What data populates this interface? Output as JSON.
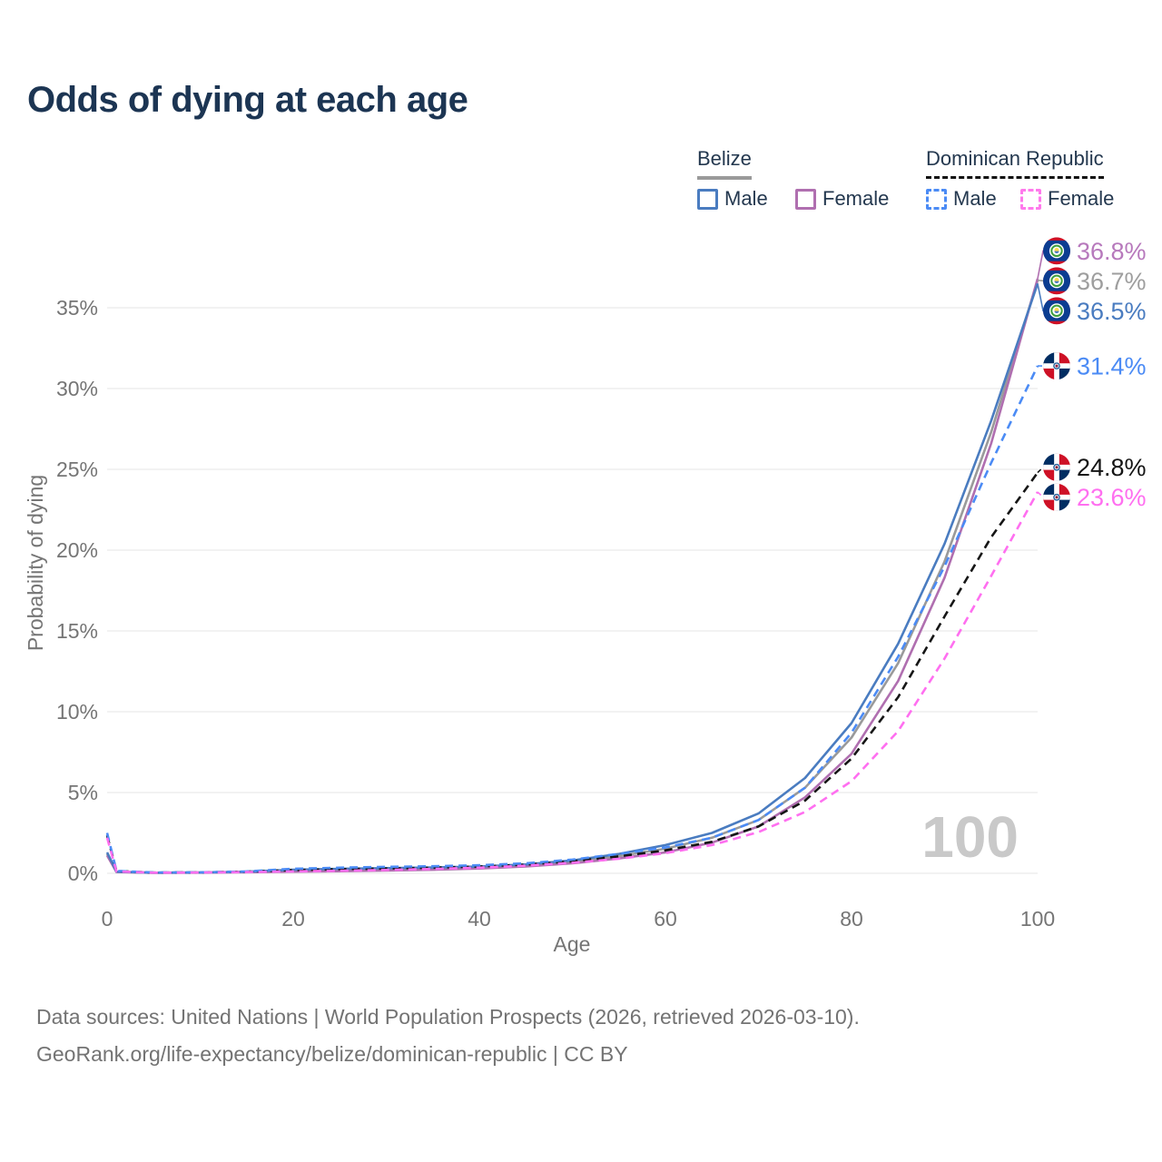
{
  "page": {
    "title": "Odds of dying at each age",
    "watermark_age": "100"
  },
  "legend": {
    "belize": {
      "label": "Belize",
      "male_label": "Male",
      "female_label": "Female",
      "male_color": "#4a7cc0",
      "female_color": "#b06fb0",
      "both_line_color": "#9a9a9a",
      "line_style": "solid"
    },
    "dominican_republic": {
      "label": "Dominican Republic",
      "male_label": "Male",
      "female_label": "Female",
      "male_color": "#4b8bf5",
      "female_color": "#ff79ec",
      "both_line_color": "#121212",
      "line_style": "dashed"
    }
  },
  "chart_data": {
    "type": "line",
    "title": "Odds of dying at each age",
    "xlabel": "Age",
    "ylabel": "Probability of dying",
    "xlim": [
      0,
      100
    ],
    "ylim": [
      0,
      35
    ],
    "grid": "horizontal",
    "legend_position": "top-right",
    "x_ticks": [
      0,
      20,
      40,
      60,
      80,
      100
    ],
    "y_ticks": [
      {
        "label": "0%",
        "value": 0
      },
      {
        "label": "5%",
        "value": 5
      },
      {
        "label": "10%",
        "value": 10
      },
      {
        "label": "15%",
        "value": 15
      },
      {
        "label": "20%",
        "value": 20
      },
      {
        "label": "25%",
        "value": 25
      },
      {
        "label": "30%",
        "value": 30
      },
      {
        "label": "35%",
        "value": 35
      }
    ],
    "ages": [
      0,
      1,
      5,
      10,
      15,
      20,
      25,
      30,
      35,
      40,
      45,
      50,
      55,
      60,
      65,
      70,
      75,
      80,
      85,
      90,
      95,
      100
    ],
    "series": [
      {
        "name": "Belize Both sexes",
        "country": "Belize",
        "sex": "Both",
        "style": "solid",
        "color": "#9a9a9a",
        "end_value": 36.7,
        "end_label": "36.7%",
        "end_label_color": "#9e9e9e",
        "flag": "belize-flag-icon",
        "values": [
          1.2,
          0.09,
          0.035,
          0.045,
          0.09,
          0.16,
          0.21,
          0.25,
          0.29,
          0.36,
          0.49,
          0.71,
          1.06,
          1.52,
          2.2,
          3.3,
          5.3,
          8.4,
          13.0,
          19.3,
          27.3,
          36.7
        ]
      },
      {
        "name": "Belize Female",
        "country": "Belize",
        "sex": "Female",
        "style": "solid",
        "color": "#b06fb0",
        "end_value": 36.8,
        "end_label": "36.8%",
        "end_label_color": "#b779bc",
        "flag": "belize-flag-icon",
        "values": [
          1.1,
          0.08,
          0.03,
          0.04,
          0.07,
          0.1,
          0.13,
          0.17,
          0.22,
          0.3,
          0.42,
          0.62,
          0.92,
          1.3,
          1.9,
          2.9,
          4.7,
          7.4,
          11.9,
          18.3,
          26.6,
          36.8
        ]
      },
      {
        "name": "Belize Male",
        "country": "Belize",
        "sex": "Male",
        "style": "solid",
        "color": "#4a7cc0",
        "end_value": 36.5,
        "end_label": "36.5%",
        "end_label_color": "#4a7cc0",
        "flag": "belize-flag-icon",
        "values": [
          1.3,
          0.1,
          0.04,
          0.05,
          0.1,
          0.22,
          0.28,
          0.32,
          0.36,
          0.42,
          0.55,
          0.8,
          1.2,
          1.75,
          2.5,
          3.7,
          5.9,
          9.3,
          14.2,
          20.4,
          28.0,
          36.5
        ]
      },
      {
        "name": "Dominican Republic Both sexes",
        "country": "Dominican Republic",
        "sex": "Both",
        "style": "dashed",
        "color": "#161616",
        "end_value": 24.8,
        "end_label": "24.8%",
        "end_label_color": "#141414",
        "flag": "dominican-republic-flag-icon",
        "values": [
          2.35,
          0.14,
          0.045,
          0.055,
          0.1,
          0.2,
          0.26,
          0.3,
          0.35,
          0.42,
          0.54,
          0.74,
          1.05,
          1.42,
          1.95,
          2.9,
          4.5,
          7.1,
          10.9,
          15.9,
          20.8,
          24.8
        ]
      },
      {
        "name": "Dominican Republic Male",
        "country": "Dominican Republic",
        "sex": "Male",
        "style": "dashed",
        "color": "#4b8bf5",
        "end_value": 31.4,
        "end_label": "31.4%",
        "end_label_color": "#4b8bf5",
        "flag": "dominican-republic-flag-icon",
        "values": [
          2.5,
          0.15,
          0.05,
          0.06,
          0.12,
          0.28,
          0.35,
          0.4,
          0.44,
          0.5,
          0.62,
          0.85,
          1.2,
          1.6,
          2.2,
          3.3,
          5.3,
          8.7,
          13.4,
          19.0,
          25.4,
          31.4
        ]
      },
      {
        "name": "Dominican Republic Female",
        "country": "Dominican Republic",
        "sex": "Female",
        "style": "dashed",
        "color": "#ff6ff0",
        "end_value": 23.6,
        "end_label": "23.6%",
        "end_label_color": "#ff6ff0",
        "flag": "dominican-republic-flag-icon",
        "values": [
          2.2,
          0.12,
          0.04,
          0.05,
          0.08,
          0.12,
          0.16,
          0.21,
          0.27,
          0.35,
          0.47,
          0.65,
          0.9,
          1.25,
          1.75,
          2.55,
          3.8,
          5.7,
          8.8,
          13.3,
          18.4,
          23.6
        ]
      }
    ]
  },
  "footer": {
    "line1": "Data sources: United Nations | World Population Prospects (2026, retrieved 2026-03-10).",
    "line2": "GeoRank.org/life-expectancy/belize/dominican-republic | CC BY"
  }
}
